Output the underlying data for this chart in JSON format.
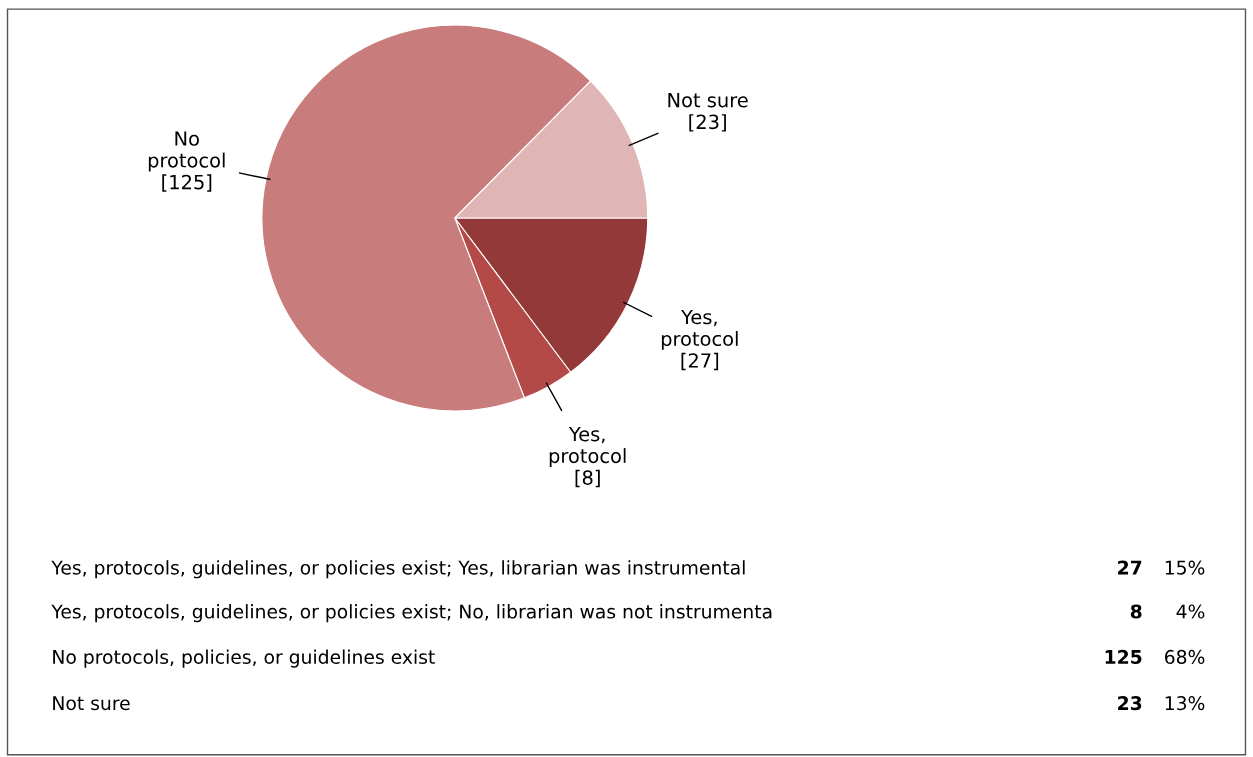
{
  "chart_data": {
    "type": "pie",
    "categories": [
      "Yes,\nprotocol",
      "Yes,\nprotocol",
      "No\nprotocol",
      "Not sure"
    ],
    "values": [
      27,
      8,
      125,
      23
    ],
    "value_labels": [
      "[27]",
      "[8]",
      "[125]",
      "[23]"
    ],
    "colors": [
      "#943939",
      "#b44a48",
      "#c97c7c",
      "#e0b5b5"
    ],
    "annotations": [
      "Yes, protocols, guidelines, or policies exist; Yes, librarian was instrumental",
      "27",
      "15%",
      "Yes, protocols, guidelines, or policies exist; No, librarian was not instrumenta",
      "8",
      "4%",
      "No protocols, policies, or guidelines exist",
      "125",
      "68%",
      "Not sure",
      "23",
      "13%"
    ],
    "legend": false
  }
}
